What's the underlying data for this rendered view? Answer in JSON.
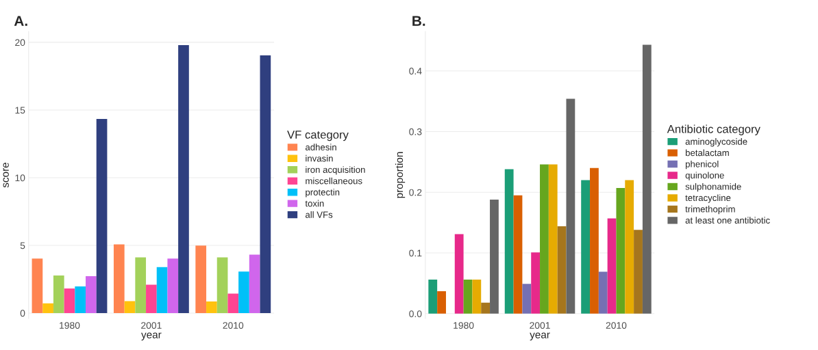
{
  "chart_data": [
    {
      "type": "bar",
      "title": "A.",
      "xlabel": "year",
      "ylabel": "score",
      "legend_title": "VF category",
      "categories": [
        "1980",
        "2001",
        "2010"
      ],
      "series": [
        {
          "name": "adhesin",
          "color": "#ff8450",
          "values": [
            4.03,
            5.08,
            4.99
          ]
        },
        {
          "name": "invasin",
          "color": "#ffc20e",
          "values": [
            0.72,
            0.88,
            0.86
          ]
        },
        {
          "name": "iron acquisition",
          "color": "#a3d15a",
          "values": [
            2.78,
            4.12,
            4.12
          ]
        },
        {
          "name": "miscellaneous",
          "color": "#fe4592",
          "values": [
            1.82,
            2.1,
            1.44
          ]
        },
        {
          "name": "protectin",
          "color": "#00c0f8",
          "values": [
            1.97,
            3.4,
            3.07
          ]
        },
        {
          "name": "toxin",
          "color": "#d066ec",
          "values": [
            2.73,
            4.03,
            4.32
          ]
        },
        {
          "name": "all VFs",
          "color": "#2f3f7f",
          "values": [
            14.34,
            19.8,
            19.04
          ]
        }
      ],
      "ylim": [
        -0.4,
        20.8
      ],
      "yticks": [
        0,
        5,
        10,
        15,
        20
      ],
      "grid": "y",
      "legend": "right"
    },
    {
      "type": "bar",
      "title": "B.",
      "xlabel": "year",
      "ylabel": "proportion",
      "legend_title": "Antibiotic category",
      "categories": [
        "1980",
        "2001",
        "2010"
      ],
      "series": [
        {
          "name": "aminoglycoside",
          "color": "#1b9e77",
          "values": [
            0.056,
            0.238,
            0.22
          ]
        },
        {
          "name": "betalactam",
          "color": "#d95f02",
          "values": [
            0.037,
            0.195,
            0.24
          ]
        },
        {
          "name": "phenicol",
          "color": "#7570b3",
          "values": [
            0,
            0.049,
            0.069
          ]
        },
        {
          "name": "quinolone",
          "color": "#e7298a",
          "values": [
            0.131,
            0.101,
            0.157
          ]
        },
        {
          "name": "sulphonamide",
          "color": "#66a61e",
          "values": [
            0.056,
            0.246,
            0.207
          ]
        },
        {
          "name": "tetracycline",
          "color": "#e6ab02",
          "values": [
            0.056,
            0.246,
            0.22
          ]
        },
        {
          "name": "trimethoprim",
          "color": "#a6761d",
          "values": [
            0.018,
            0.144,
            0.138
          ]
        },
        {
          "name": "at least one antibiotic",
          "color": "#666666",
          "values": [
            0.188,
            0.354,
            0.443
          ]
        }
      ],
      "ylim": [
        -0.008,
        0.465
      ],
      "yticks": [
        {
          "value": 0,
          "label": "0.0"
        },
        0.1,
        0.2,
        0.3,
        0.4
      ],
      "grid": "y",
      "legend": "right"
    }
  ]
}
